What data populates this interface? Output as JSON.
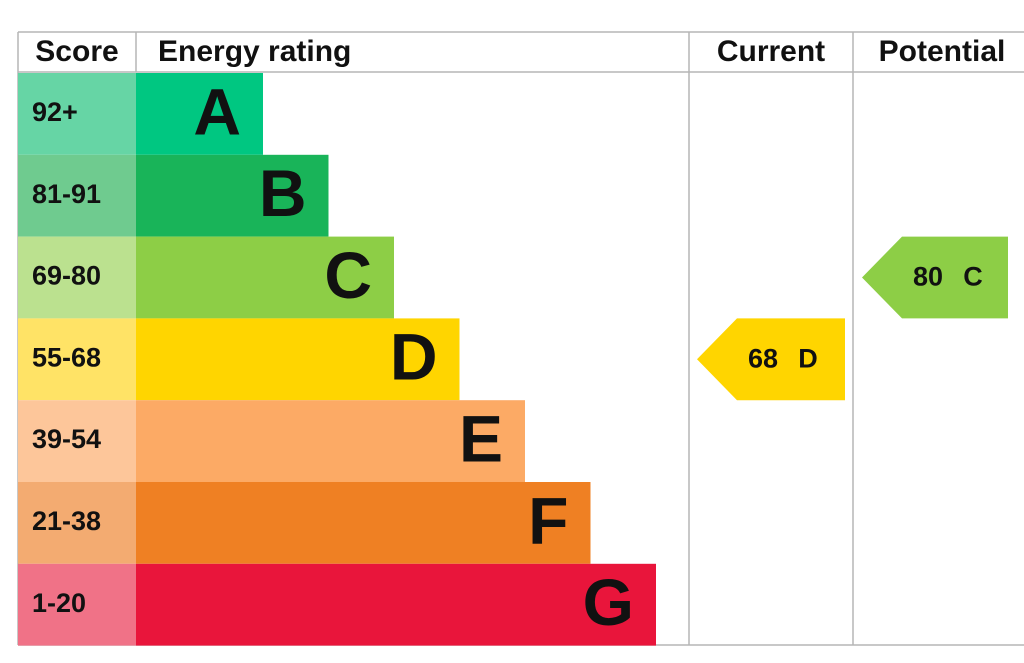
{
  "header": {
    "score": "Score",
    "rating": "Energy rating",
    "current": "Current",
    "potential": "Potential"
  },
  "bands": [
    {
      "score": "92+",
      "letter": "A",
      "color": "#00c781",
      "light": "#66d5a5"
    },
    {
      "score": "81-91",
      "letter": "B",
      "color": "#19b459",
      "light": "#6fcb8f"
    },
    {
      "score": "69-80",
      "letter": "C",
      "color": "#8dce46",
      "light": "#bbe18f"
    },
    {
      "score": "55-68",
      "letter": "D",
      "color": "#ffd500",
      "light": "#ffe366"
    },
    {
      "score": "39-54",
      "letter": "E",
      "color": "#fcaa65",
      "light": "#fdc69a"
    },
    {
      "score": "21-38",
      "letter": "F",
      "color": "#ef8023",
      "light": "#f3ab71"
    },
    {
      "score": "1-20",
      "letter": "G",
      "color": "#e9153b",
      "light": "#f07287"
    }
  ],
  "current": {
    "value": 68,
    "rating": "D"
  },
  "potential": {
    "value": 80,
    "rating": "C"
  }
}
